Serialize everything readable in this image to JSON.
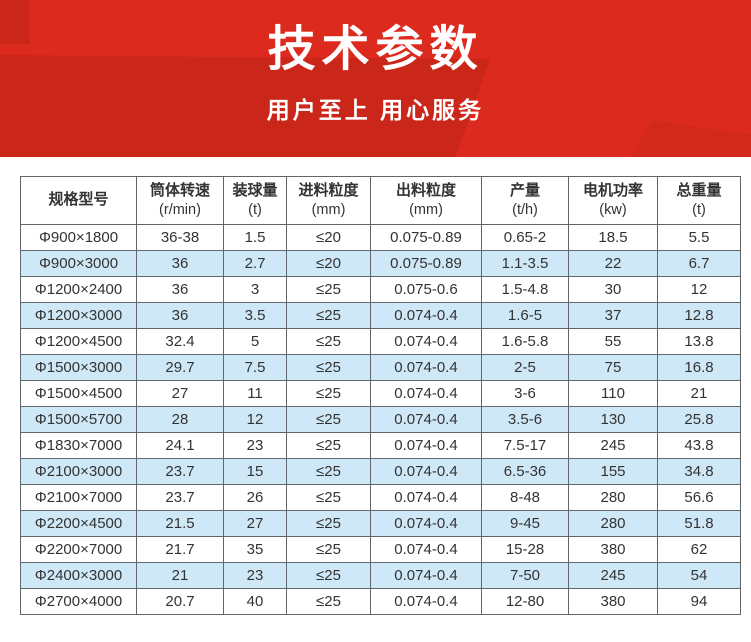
{
  "banner": {
    "title": "技术参数",
    "subtitle": "用户至上 用心服务",
    "bg_color": "#dc2b1e",
    "text_color": "#ffffff"
  },
  "table": {
    "border_color": "#5f666c",
    "alt_row_color": "#cfe8f7",
    "columns": [
      {
        "label": "规格型号",
        "unit": ""
      },
      {
        "label": "筒体转速",
        "unit": "(r/min)"
      },
      {
        "label": "装球量",
        "unit": "(t)"
      },
      {
        "label": "进料粒度",
        "unit": "(mm)"
      },
      {
        "label": "出料粒度",
        "unit": "(mm)"
      },
      {
        "label": "产量",
        "unit": "(t/h)"
      },
      {
        "label": "电机功率",
        "unit": "(kw)"
      },
      {
        "label": "总重量",
        "unit": "(t)"
      }
    ],
    "rows": [
      [
        "Φ900×1800",
        "36-38",
        "1.5",
        "≤20",
        "0.075-0.89",
        "0.65-2",
        "18.5",
        "5.5"
      ],
      [
        "Φ900×3000",
        "36",
        "2.7",
        "≤20",
        "0.075-0.89",
        "1.1-3.5",
        "22",
        "6.7"
      ],
      [
        "Φ1200×2400",
        "36",
        "3",
        "≤25",
        "0.075-0.6",
        "1.5-4.8",
        "30",
        "12"
      ],
      [
        "Φ1200×3000",
        "36",
        "3.5",
        "≤25",
        "0.074-0.4",
        "1.6-5",
        "37",
        "12.8"
      ],
      [
        "Φ1200×4500",
        "32.4",
        "5",
        "≤25",
        "0.074-0.4",
        "1.6-5.8",
        "55",
        "13.8"
      ],
      [
        "Φ1500×3000",
        "29.7",
        "7.5",
        "≤25",
        "0.074-0.4",
        "2-5",
        "75",
        "16.8"
      ],
      [
        "Φ1500×4500",
        "27",
        "11",
        "≤25",
        "0.074-0.4",
        "3-6",
        "110",
        "21"
      ],
      [
        "Φ1500×5700",
        "28",
        "12",
        "≤25",
        "0.074-0.4",
        "3.5-6",
        "130",
        "25.8"
      ],
      [
        "Φ1830×7000",
        "24.1",
        "23",
        "≤25",
        "0.074-0.4",
        "7.5-17",
        "245",
        "43.8"
      ],
      [
        "Φ2100×3000",
        "23.7",
        "15",
        "≤25",
        "0.074-0.4",
        "6.5-36",
        "155",
        "34.8"
      ],
      [
        "Φ2100×7000",
        "23.7",
        "26",
        "≤25",
        "0.074-0.4",
        "8-48",
        "280",
        "56.6"
      ],
      [
        "Φ2200×4500",
        "21.5",
        "27",
        "≤25",
        "0.074-0.4",
        "9-45",
        "280",
        "51.8"
      ],
      [
        "Φ2200×7000",
        "21.7",
        "35",
        "≤25",
        "0.074-0.4",
        "15-28",
        "380",
        "62"
      ],
      [
        "Φ2400×3000",
        "21",
        "23",
        "≤25",
        "0.074-0.4",
        "7-50",
        "245",
        "54"
      ],
      [
        "Φ2700×4000",
        "20.7",
        "40",
        "≤25",
        "0.074-0.4",
        "12-80",
        "380",
        "94"
      ]
    ]
  }
}
